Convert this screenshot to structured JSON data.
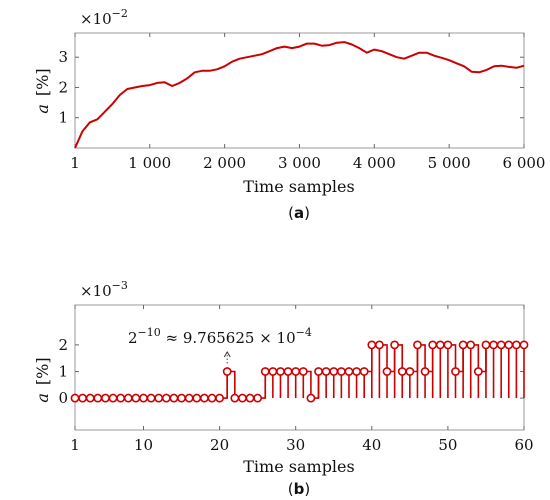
{
  "chart_data": [
    {
      "type": "line",
      "panel_label": "(a)",
      "panel_letter": "a",
      "xlabel": "Time samples",
      "ylabel": "a  [%]",
      "ylabel_var": "a",
      "ylabel_unit": "[%]",
      "exponent": "−2",
      "xlim": [
        1,
        6000
      ],
      "ylim": [
        0,
        3.8
      ],
      "xticks": [
        1,
        1000,
        2000,
        3000,
        4000,
        5000,
        6000
      ],
      "xtick_labels": [
        "1",
        "1 000",
        "2 000",
        "3 000",
        "4 000",
        "5 000",
        "6 000"
      ],
      "yticks": [
        1,
        2,
        3
      ],
      "ytick_labels": [
        "1",
        "2",
        "3"
      ],
      "grid": false,
      "color": "#cc0000",
      "series": [
        {
          "x": [
            1,
            100,
            200,
            300,
            400,
            500,
            600,
            700,
            800,
            900,
            1000,
            1100,
            1200,
            1300,
            1400,
            1500,
            1600,
            1700,
            1800,
            1900,
            2000,
            2100,
            2200,
            2300,
            2400,
            2500,
            2600,
            2700,
            2800,
            2900,
            3000,
            3100,
            3200,
            3300,
            3400,
            3500,
            3600,
            3700,
            3800,
            3900,
            4000,
            4100,
            4200,
            4300,
            4400,
            4500,
            4600,
            4700,
            4800,
            4900,
            5000,
            5100,
            5200,
            5300,
            5400,
            5500,
            5600,
            5700,
            5800,
            5900,
            6000
          ],
          "y": [
            0.0,
            0.55,
            0.85,
            0.95,
            1.2,
            1.45,
            1.75,
            1.95,
            2.0,
            2.05,
            2.08,
            2.15,
            2.17,
            2.05,
            2.15,
            2.3,
            2.5,
            2.55,
            2.55,
            2.6,
            2.7,
            2.85,
            2.95,
            3.0,
            3.05,
            3.1,
            3.2,
            3.3,
            3.35,
            3.3,
            3.35,
            3.45,
            3.45,
            3.38,
            3.4,
            3.48,
            3.5,
            3.42,
            3.3,
            3.15,
            3.25,
            3.2,
            3.1,
            3.0,
            2.95,
            3.05,
            3.15,
            3.15,
            3.05,
            2.98,
            2.9,
            2.8,
            2.7,
            2.52,
            2.5,
            2.58,
            2.7,
            2.72,
            2.68,
            2.65,
            2.72
          ]
        }
      ]
    },
    {
      "type": "stem",
      "panel_label": "(b)",
      "panel_letter": "b",
      "xlabel": "Time samples",
      "ylabel": "a  [%]",
      "ylabel_var": "a",
      "ylabel_unit": "[%]",
      "exponent": "−3",
      "xlim": [
        1,
        60
      ],
      "ylim": [
        -1.2,
        3.5
      ],
      "xticks": [
        1,
        10,
        20,
        30,
        40,
        50,
        60
      ],
      "xtick_labels": [
        "1",
        "10",
        "20",
        "30",
        "40",
        "50",
        "60"
      ],
      "yticks": [
        0,
        1,
        2
      ],
      "ytick_labels": [
        "0",
        "1",
        "2"
      ],
      "grid": false,
      "color": "#cc0000",
      "annotation": {
        "text_base": "2",
        "text_exp": "−10",
        "text_rest": " ≈ 9.765625 × 10",
        "text_exp2": "−4",
        "x": 21,
        "y": 1
      },
      "series": [
        {
          "x": [
            1,
            2,
            3,
            4,
            5,
            6,
            7,
            8,
            9,
            10,
            11,
            12,
            13,
            14,
            15,
            16,
            17,
            18,
            19,
            20,
            21,
            22,
            23,
            24,
            25,
            26,
            27,
            28,
            29,
            30,
            31,
            32,
            33,
            34,
            35,
            36,
            37,
            38,
            39,
            40,
            41,
            42,
            43,
            44,
            45,
            46,
            47,
            48,
            49,
            50,
            51,
            52,
            53,
            54,
            55,
            56,
            57,
            58,
            59,
            60
          ],
          "y": [
            0,
            0,
            0,
            0,
            0,
            0,
            0,
            0,
            0,
            0,
            0,
            0,
            0,
            0,
            0,
            0,
            0,
            0,
            0,
            0,
            1,
            0,
            0,
            0,
            0,
            1,
            1,
            1,
            1,
            1,
            1,
            0,
            1,
            1,
            1,
            1,
            1,
            1,
            1,
            2,
            2,
            1,
            2,
            1,
            1,
            2,
            1,
            2,
            2,
            2,
            1,
            2,
            2,
            1,
            2,
            2,
            2,
            2,
            2,
            2
          ]
        }
      ]
    }
  ]
}
